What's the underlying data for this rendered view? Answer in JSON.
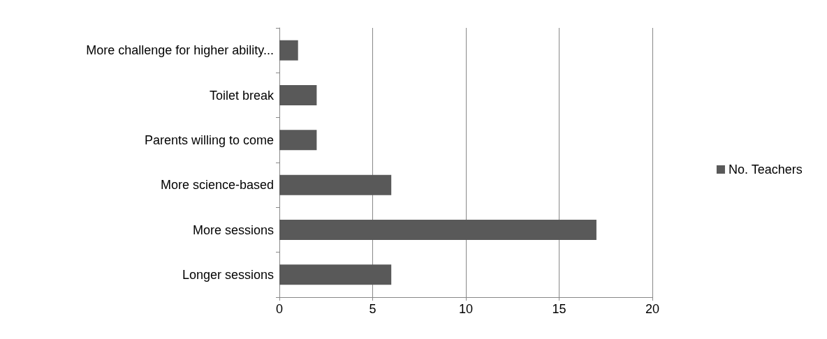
{
  "chart_data": {
    "type": "bar",
    "orientation": "horizontal",
    "categories": [
      "More challenge for higher ability...",
      "Toilet break",
      "Parents willing to come",
      "More science-based",
      "More sessions",
      "Longer sessions"
    ],
    "series": [
      {
        "name": "No. Teachers",
        "color": "#595959",
        "values": [
          1,
          2,
          2,
          6,
          17,
          6
        ]
      }
    ],
    "xlim": [
      0,
      20
    ],
    "xticks": [
      0,
      5,
      10,
      15,
      20
    ],
    "grid": "x",
    "legend": "right"
  }
}
